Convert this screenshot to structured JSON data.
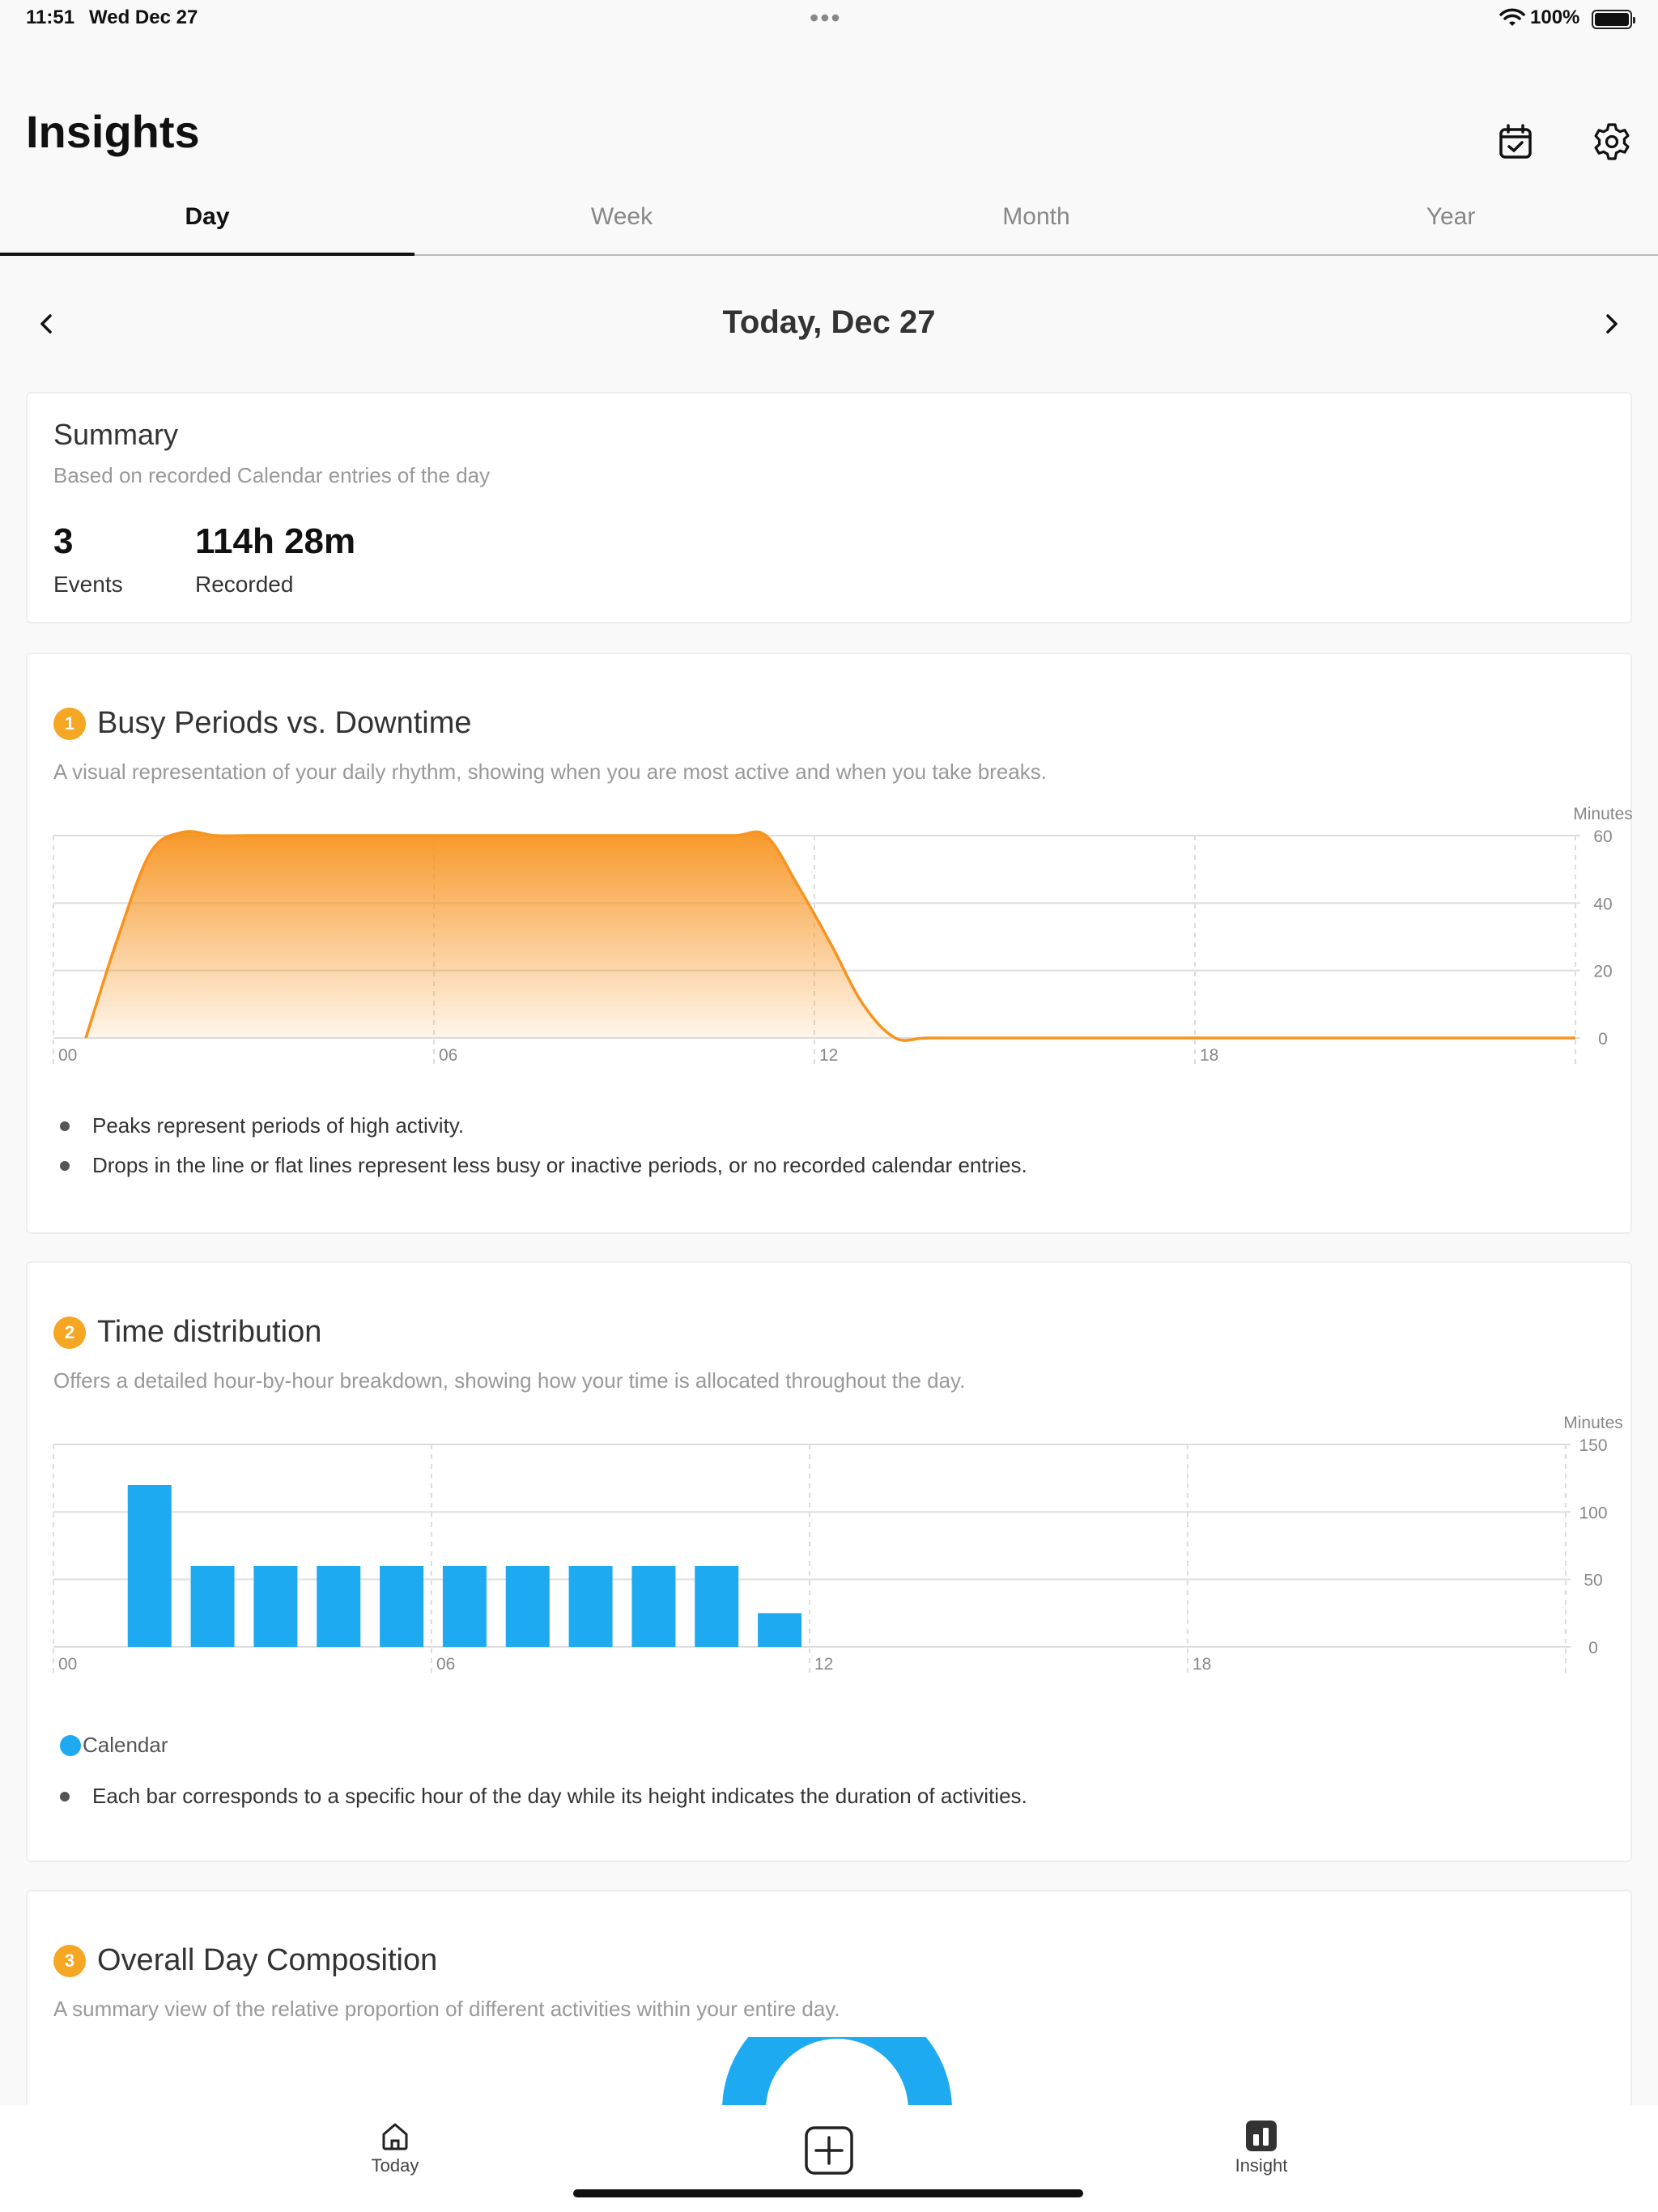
{
  "status_bar": {
    "time": "11:51",
    "date": "Wed Dec 27",
    "battery": "100%"
  },
  "header": {
    "title": "Insights",
    "calendar_icon": "calendar-check-icon",
    "settings_icon": "gear-icon"
  },
  "tabs": [
    {
      "label": "Day",
      "active": true
    },
    {
      "label": "Week",
      "active": false
    },
    {
      "label": "Month",
      "active": false
    },
    {
      "label": "Year",
      "active": false
    }
  ],
  "date_nav": {
    "title": "Today, Dec 27"
  },
  "summary": {
    "title": "Summary",
    "subtitle": "Based on recorded Calendar entries of the day",
    "events_value": "3",
    "events_label": "Events",
    "recorded_value": "114h 28m",
    "recorded_label": "Recorded"
  },
  "busy": {
    "number": "1",
    "title": "Busy Periods vs. Downtime",
    "description": "A visual representation of your daily rhythm, showing when you are most active and when you take breaks.",
    "bullets": [
      "Peaks represent periods of high activity.",
      "Drops in the line or flat lines represent less busy or inactive periods, or no recorded calendar entries."
    ]
  },
  "distribution": {
    "number": "2",
    "title": "Time distribution",
    "description": "Offers a detailed hour-by-hour breakdown, showing how your time is allocated throughout the day.",
    "legend": "Calendar",
    "bullets": [
      "Each bar corresponds to a specific hour of the day while its height indicates the duration of activities."
    ]
  },
  "composition": {
    "number": "3",
    "title": "Overall Day Composition",
    "description": "A summary view of the relative proportion of different activities within your entire day."
  },
  "bottom_bar": {
    "today": "Today",
    "insight": "Insight"
  },
  "colors": {
    "accent_orange": "#f5a623",
    "line_orange": "#f7931e",
    "bar_blue": "#1eaaf1"
  },
  "chart_data": [
    {
      "type": "area",
      "ylabel": "Minutes",
      "ylim": [
        0,
        60
      ],
      "yticks": [
        "60",
        "40",
        "20",
        "0"
      ],
      "xticks": [
        "00",
        "06",
        "12",
        "18"
      ],
      "x": [
        0,
        0.5,
        1,
        1.5,
        2,
        2.5,
        3,
        4,
        5,
        6,
        7,
        8,
        9,
        10,
        10.5,
        11,
        11.5,
        12,
        12.5,
        13,
        14,
        15,
        16,
        17,
        18,
        19,
        20,
        21,
        22,
        23
      ],
      "values": [
        0,
        30,
        55,
        61,
        60,
        60,
        60,
        60,
        60,
        60,
        60,
        60,
        60,
        60,
        60,
        45,
        28,
        10,
        0,
        0,
        0,
        0,
        0,
        0,
        0,
        0,
        0,
        0,
        0,
        0
      ],
      "grid": true
    },
    {
      "type": "bar",
      "ylabel": "Minutes",
      "ylim": [
        0,
        150
      ],
      "yticks": [
        "150",
        "100",
        "50",
        "0"
      ],
      "xticks": [
        "00",
        "06",
        "12",
        "18"
      ],
      "categories": [
        "0",
        "1",
        "2",
        "3",
        "4",
        "5",
        "6",
        "7",
        "8",
        "9",
        "10",
        "11",
        "12",
        "13",
        "14",
        "15",
        "16",
        "17",
        "18",
        "19",
        "20",
        "21",
        "22",
        "23"
      ],
      "series": [
        {
          "name": "Calendar",
          "values": [
            0,
            120,
            60,
            60,
            60,
            60,
            60,
            60,
            60,
            60,
            60,
            25,
            0,
            0,
            0,
            0,
            0,
            0,
            0,
            0,
            0,
            0,
            0,
            0
          ]
        }
      ],
      "grid": true
    }
  ]
}
